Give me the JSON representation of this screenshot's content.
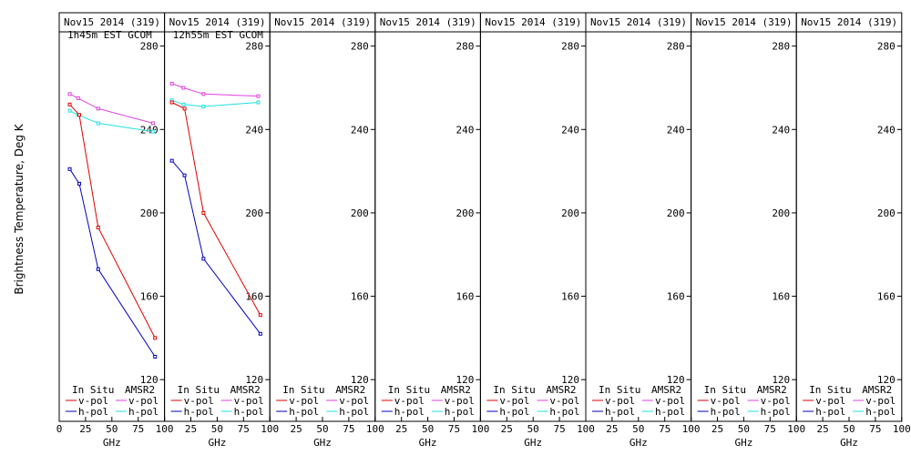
{
  "chart_data": {
    "type": "line",
    "ylabel": "Brightness Temperature, Deg K",
    "xlabel": "GHz",
    "xlim": [
      0,
      100
    ],
    "ylim": [
      100,
      296
    ],
    "xticks": [
      0,
      25,
      50,
      75,
      100
    ],
    "xtick_labels": [
      "0",
      "25",
      "50",
      "75",
      "100"
    ],
    "yticks": [
      120,
      160,
      200,
      240,
      280
    ],
    "ytick_labels": [
      "120",
      "160",
      "200",
      "240",
      "280"
    ],
    "legend": {
      "in_situ_label": "In Situ",
      "amsr2_label": "AMSR2",
      "entries": [
        {
          "group": "in_situ",
          "name": "v-pol",
          "color": "#e00000"
        },
        {
          "group": "amsr2",
          "name": "v-pol",
          "color": "#e040e0"
        },
        {
          "group": "in_situ",
          "name": "h-pol",
          "color": "#0000c0"
        },
        {
          "group": "amsr2",
          "name": "h-pol",
          "color": "#20e0e0"
        }
      ]
    },
    "panels": [
      {
        "title": "Nov15 2014 (319)",
        "subtitle": "1h45m EST GCOM",
        "series": [
          {
            "name": "AMSR2 v-pol",
            "color": "#e040e0",
            "x": [
              10,
              18,
              37,
              89
            ],
            "y": [
              257,
              255,
              250,
              243
            ]
          },
          {
            "name": "AMSR2 h-pol",
            "color": "#20e0e0",
            "x": [
              10,
              18,
              37,
              89
            ],
            "y": [
              249,
              247,
              243,
              239
            ]
          },
          {
            "name": "In Situ v-pol",
            "color": "#e00000",
            "x": [
              10,
              19,
              37,
              91
            ],
            "y": [
              252,
              247,
              193,
              140
            ]
          },
          {
            "name": "In Situ h-pol",
            "color": "#0000c0",
            "x": [
              10,
              19,
              37,
              91
            ],
            "y": [
              221,
              214,
              173,
              131
            ]
          }
        ]
      },
      {
        "title": "Nov15 2014 (319)",
        "subtitle": "12h55m EST GCOM",
        "series": [
          {
            "name": "AMSR2 v-pol",
            "color": "#e040e0",
            "x": [
              7,
              18,
              37,
              89
            ],
            "y": [
              262,
              260,
              257,
              256
            ]
          },
          {
            "name": "AMSR2 h-pol",
            "color": "#20e0e0",
            "x": [
              7,
              18,
              37,
              89
            ],
            "y": [
              254,
              252,
              251,
              253
            ]
          },
          {
            "name": "In Situ v-pol",
            "color": "#e00000",
            "x": [
              7,
              19,
              37,
              91
            ],
            "y": [
              253,
              250,
              200,
              151
            ]
          },
          {
            "name": "In Situ h-pol",
            "color": "#0000c0",
            "x": [
              7,
              19,
              37,
              91
            ],
            "y": [
              225,
              218,
              178,
              142
            ]
          }
        ]
      },
      {
        "title": "Nov15 2014 (319)",
        "subtitle": "",
        "series": []
      },
      {
        "title": "Nov15 2014 (319)",
        "subtitle": "",
        "series": []
      },
      {
        "title": "Nov15 2014 (319)",
        "subtitle": "",
        "series": []
      },
      {
        "title": "Nov15 2014 (319)",
        "subtitle": "",
        "series": []
      },
      {
        "title": "Nov15 2014 (319)",
        "subtitle": "",
        "series": []
      },
      {
        "title": "Nov15 2014 (319)",
        "subtitle": "",
        "series": []
      }
    ]
  }
}
